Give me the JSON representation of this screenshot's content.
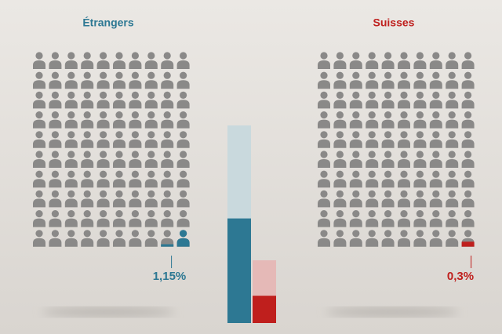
{
  "chart_data": {
    "type": "pictogram",
    "series": [
      {
        "name": "Étrangers",
        "color": "#2d7893",
        "values": [
          1.15
        ],
        "value_labels": [
          "1,15%"
        ]
      },
      {
        "name": "Suisses",
        "color": "#bf1f1d",
        "values": [
          0.3
        ],
        "value_labels": [
          "0,3%"
        ]
      }
    ]
  }
}
